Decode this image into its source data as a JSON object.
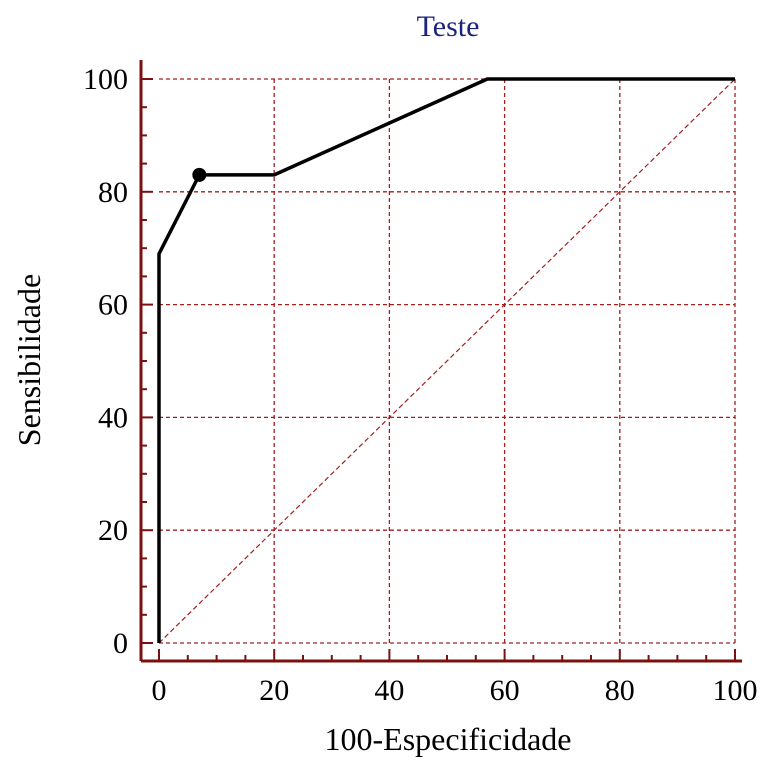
{
  "colors": {
    "axis": "#7a1010",
    "grid": "#a02020",
    "curve": "#000000",
    "title": "#1a237e",
    "diagonal": "#a02020"
  },
  "chart_data": {
    "type": "line",
    "title": "Teste",
    "xlabel": "100-Especificidade",
    "ylabel": "Sensibilidade",
    "xlim": [
      0,
      100
    ],
    "ylim": [
      0,
      100
    ],
    "x_ticks": [
      "0",
      "20",
      "40",
      "60",
      "80",
      "100"
    ],
    "y_ticks": [
      "0",
      "20",
      "40",
      "60",
      "80",
      "100"
    ],
    "grid": true,
    "series": [
      {
        "values": [
          {
            "x": 0,
            "y": 0
          },
          {
            "x": 0,
            "y": 69
          },
          {
            "x": 7,
            "y": 83
          },
          {
            "x": 20,
            "y": 83
          },
          {
            "x": 57,
            "y": 100
          },
          {
            "x": 100,
            "y": 100
          }
        ]
      }
    ],
    "reference_line": [
      {
        "x": 0,
        "y": 0
      },
      {
        "x": 100,
        "y": 100
      }
    ],
    "highlight_point": {
      "x": 7,
      "y": 83
    }
  }
}
